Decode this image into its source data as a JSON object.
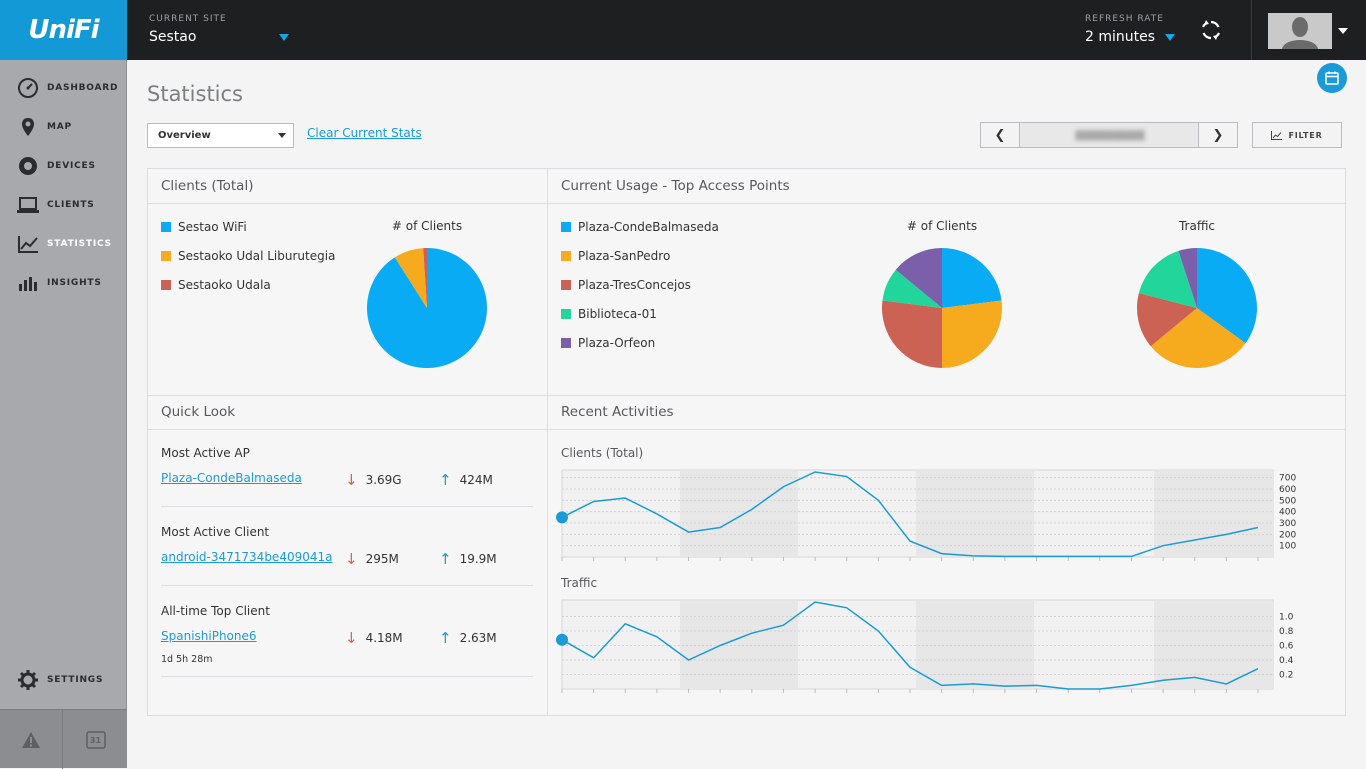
{
  "brand": "UniFi",
  "topbar": {
    "site_label": "CURRENT SITE",
    "site_value": "Sestao",
    "refresh_label": "REFRESH RATE",
    "refresh_value": "2 minutes"
  },
  "sidebar": {
    "items": [
      {
        "label": "DASHBOARD",
        "icon": "dashboard-icon"
      },
      {
        "label": "MAP",
        "icon": "map-pin-icon"
      },
      {
        "label": "DEVICES",
        "icon": "devices-icon"
      },
      {
        "label": "CLIENTS",
        "icon": "laptop-icon"
      },
      {
        "label": "STATISTICS",
        "icon": "line-chart-icon",
        "active": true
      },
      {
        "label": "INSIGHTS",
        "icon": "bar-chart-icon"
      }
    ],
    "settings_label": "SETTINGS",
    "calendar_day": "31"
  },
  "page": {
    "title": "Statistics",
    "view_select": "Overview",
    "clear_link": "Clear Current Stats",
    "filter_label": "FILTER"
  },
  "clients_total": {
    "title": "Clients (Total)",
    "chart_title": "# of Clients",
    "legend": [
      "Sestao WiFi",
      "Sestaoko Udal Liburutegia",
      "Sestaoko Udala"
    ]
  },
  "top_aps": {
    "title": "Current Usage - Top Access Points",
    "chart1_title": "# of Clients",
    "chart2_title": "Traffic",
    "legend": [
      "Plaza-CondeBalmaseda",
      "Plaza-SanPedro",
      "Plaza-TresConcejos",
      "Biblioteca-01",
      "Plaza-Orfeon"
    ]
  },
  "quick_look": {
    "title": "Quick Look",
    "items": [
      {
        "heading": "Most Active AP",
        "link": "Plaza-CondeBalmaseda",
        "down": "3.69G",
        "up": "424M"
      },
      {
        "heading": "Most Active Client",
        "link": "android-3471734be409041a",
        "down": "295M",
        "up": "19.9M"
      },
      {
        "heading": "All-time Top Client",
        "link": "SpanishiPhone6",
        "down": "4.18M",
        "up": "2.63M",
        "extra": "1d 5h 28m"
      }
    ]
  },
  "recent": {
    "title": "Recent Activities",
    "clients_label": "Clients (Total)",
    "traffic_label": "Traffic"
  },
  "colors": {
    "blue": "#0aabf5",
    "orange": "#f6ab1e",
    "red": "#cb6253",
    "green": "#21d59b",
    "purple": "#7b5fab",
    "line": "#1a9bd8"
  },
  "chart_data": [
    {
      "type": "pie",
      "title": "# of Clients",
      "labels": [
        "Sestao WiFi",
        "Sestaoko Udal Liburutegia",
        "Sestaoko Udala"
      ],
      "values": [
        91,
        8,
        1
      ]
    },
    {
      "type": "pie",
      "title": "# of Clients",
      "labels": [
        "Plaza-CondeBalmaseda",
        "Plaza-SanPedro",
        "Plaza-TresConcejos",
        "Biblioteca-01",
        "Plaza-Orfeon"
      ],
      "values": [
        23,
        27,
        27,
        9,
        14
      ]
    },
    {
      "type": "pie",
      "title": "Traffic",
      "labels": [
        "Plaza-CondeBalmaseda",
        "Plaza-SanPedro",
        "Plaza-TresConcejos",
        "Biblioteca-01",
        "Plaza-Orfeon"
      ],
      "values": [
        35,
        29,
        15,
        16,
        5
      ]
    },
    {
      "type": "line",
      "title": "Clients (Total)",
      "ylim": [
        0,
        750
      ],
      "yticks": [
        700,
        600,
        500,
        400,
        300,
        200,
        100
      ],
      "values": [
        350,
        490,
        520,
        380,
        220,
        260,
        420,
        620,
        750,
        710,
        500,
        140,
        30,
        10,
        5,
        5,
        5,
        5,
        5,
        100,
        150,
        200,
        260
      ]
    },
    {
      "type": "line",
      "title": "Traffic",
      "ylim": [
        0,
        1.2
      ],
      "yticks": [
        "1.0",
        "0.8",
        "0.6",
        "0.4",
        "0.2"
      ],
      "values": [
        0.68,
        0.43,
        0.9,
        0.72,
        0.4,
        0.6,
        0.77,
        0.88,
        1.2,
        1.12,
        0.8,
        0.3,
        0.05,
        0.07,
        0.04,
        0.05,
        0,
        0,
        0.05,
        0.12,
        0.16,
        0.07,
        0.28
      ]
    }
  ]
}
